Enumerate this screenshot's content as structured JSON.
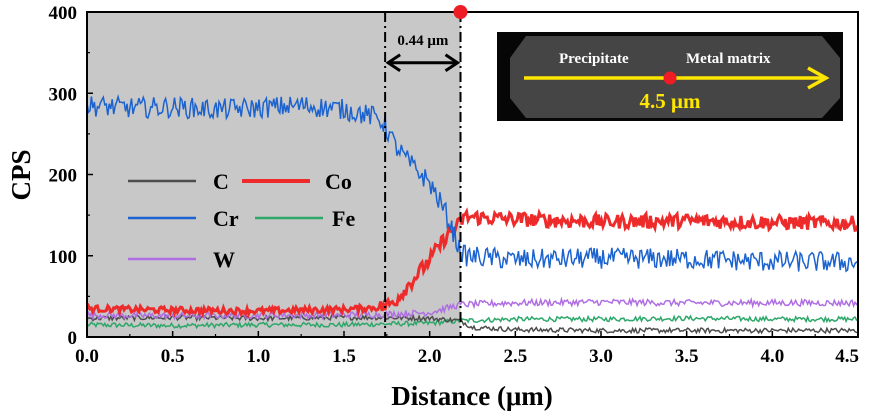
{
  "chart_data": {
    "type": "line",
    "xlabel": "Distance (μm)",
    "ylabel": "CPS",
    "xlim": [
      0.0,
      4.5
    ],
    "ylim": [
      0,
      400
    ],
    "x_ticks": [
      "0.0",
      "0.5",
      "1.0",
      "1.5",
      "2.0",
      "2.5",
      "3.0",
      "3.5",
      "4.0",
      "4.5"
    ],
    "y_ticks": [
      "0",
      "100",
      "200",
      "300",
      "400"
    ],
    "shaded_region": {
      "x": [
        0.0,
        2.18
      ],
      "color": "#c8c8c8"
    },
    "boundary_lines": [
      1.74,
      2.18
    ],
    "interval_annotation": {
      "label": "0.44 μm",
      "from": 1.74,
      "to": 2.18,
      "y": 340
    },
    "marker_point": {
      "x": 2.18,
      "y": 400,
      "color": "#ee1c25"
    },
    "legend_placement": "center-left",
    "grid": false,
    "series": [
      {
        "name": "C",
        "color": "#4d4d4d",
        "x": [
          0.0,
          0.5,
          1.0,
          1.5,
          1.74,
          2.0,
          2.18,
          2.25,
          2.5,
          3.0,
          3.5,
          4.0,
          4.5
        ],
        "values": [
          23,
          24,
          23,
          24,
          24,
          23,
          20,
          12,
          9,
          8,
          8,
          8,
          8
        ]
      },
      {
        "name": "Co",
        "color": "#ee2b2b",
        "x": [
          0.0,
          0.5,
          1.0,
          1.5,
          1.74,
          1.8,
          1.9,
          2.0,
          2.1,
          2.18,
          2.2,
          2.5,
          3.0,
          3.5,
          4.0,
          4.5
        ],
        "values": [
          35,
          33,
          32,
          34,
          37,
          45,
          70,
          95,
          125,
          140,
          148,
          145,
          142,
          143,
          141,
          140
        ]
      },
      {
        "name": "Cr",
        "color": "#1c63cf",
        "x": [
          0.0,
          0.25,
          0.5,
          0.75,
          1.0,
          1.25,
          1.5,
          1.7,
          1.74,
          1.8,
          1.9,
          2.0,
          2.1,
          2.18,
          2.2,
          2.5,
          3.0,
          3.5,
          4.0,
          4.5
        ],
        "values": [
          285,
          282,
          283,
          280,
          282,
          285,
          280,
          270,
          260,
          235,
          210,
          190,
          150,
          105,
          100,
          95,
          97,
          96,
          93,
          92
        ]
      },
      {
        "name": "Fe",
        "color": "#2ea86a",
        "x": [
          0.0,
          0.5,
          1.0,
          1.5,
          1.74,
          2.0,
          2.18,
          2.5,
          3.0,
          3.5,
          4.0,
          4.5
        ],
        "values": [
          15,
          14,
          15,
          15,
          16,
          17,
          20,
          22,
          22,
          23,
          22,
          22
        ]
      },
      {
        "name": "W",
        "color": "#b06ee3",
        "x": [
          0.0,
          0.5,
          1.0,
          1.5,
          1.74,
          2.0,
          2.18,
          2.5,
          3.0,
          3.5,
          4.0,
          4.5
        ],
        "values": [
          27,
          26,
          27,
          27,
          28,
          30,
          40,
          42,
          43,
          42,
          42,
          42
        ]
      }
    ],
    "inset": {
      "left_label": "Precipitate",
      "right_label": "Metal matrix",
      "scale_label": "4.5 μm"
    }
  }
}
